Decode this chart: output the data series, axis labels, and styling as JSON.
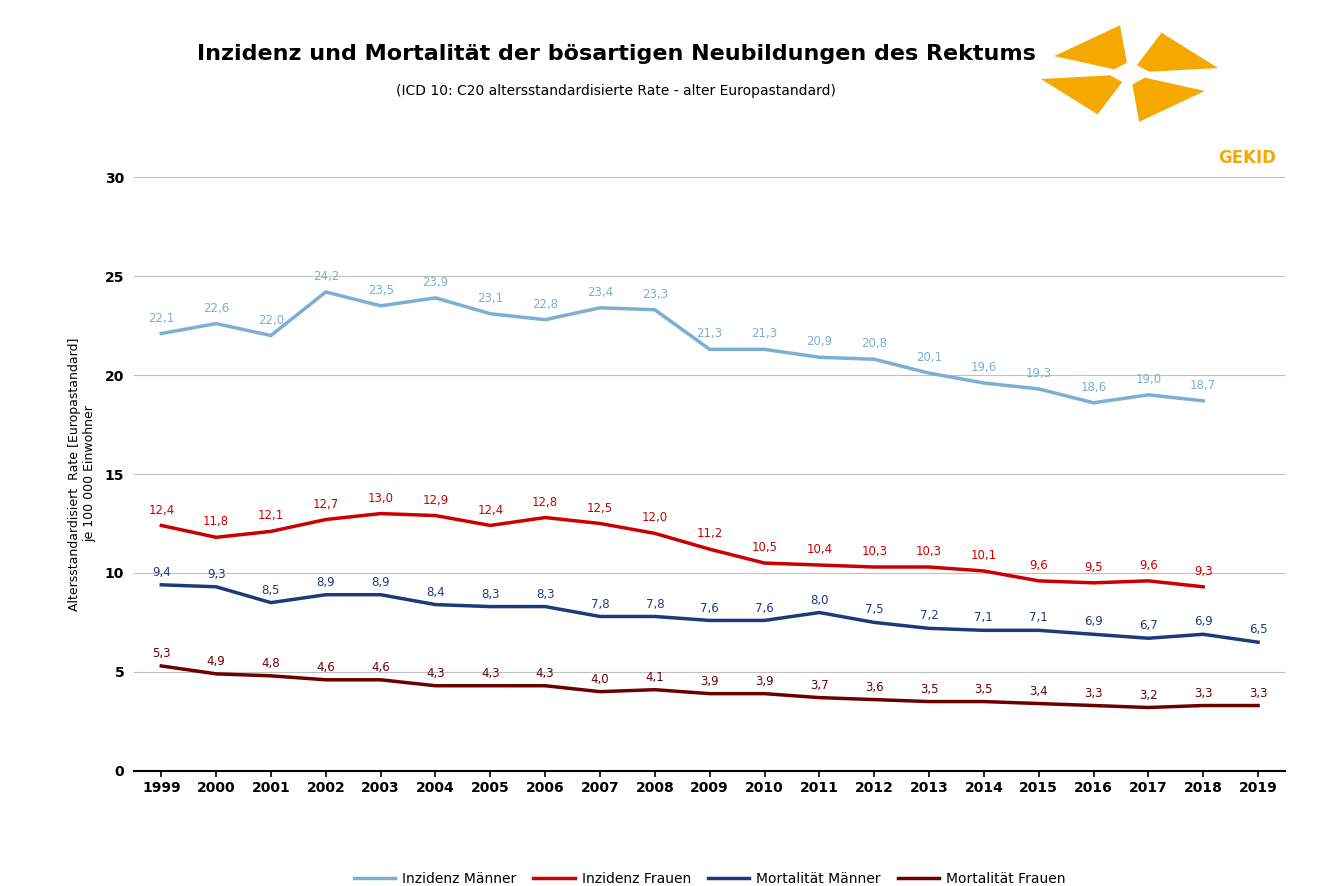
{
  "title": "Inzidenz und Mortalität der bösartigen Neubildungen des Rektums",
  "subtitle": "(ICD 10: C20 altersstandardisierte Rate - alter Europastandard)",
  "ylabel": "Altersstandardisiert  Rate [Europastandard]\nje 100 000 Einwohner",
  "years": [
    1999,
    2000,
    2001,
    2002,
    2003,
    2004,
    2005,
    2006,
    2007,
    2008,
    2009,
    2010,
    2011,
    2012,
    2013,
    2014,
    2015,
    2016,
    2017,
    2018,
    2019
  ],
  "inzidenz_maenner": [
    22.1,
    22.6,
    22.0,
    24.2,
    23.5,
    23.9,
    23.1,
    22.8,
    23.4,
    23.3,
    21.3,
    21.3,
    20.9,
    20.8,
    20.1,
    19.6,
    19.3,
    18.6,
    19.0,
    18.7,
    null
  ],
  "inzidenz_frauen": [
    12.4,
    11.8,
    12.1,
    12.7,
    13.0,
    12.9,
    12.4,
    12.8,
    12.5,
    12.0,
    11.2,
    10.5,
    10.4,
    10.3,
    10.3,
    10.1,
    9.6,
    9.5,
    9.6,
    9.3,
    null
  ],
  "mortalitaet_maenner": [
    9.4,
    9.3,
    8.5,
    8.9,
    8.9,
    8.4,
    8.3,
    8.3,
    7.8,
    7.8,
    7.6,
    7.6,
    8.0,
    7.5,
    7.2,
    7.1,
    7.1,
    6.9,
    6.7,
    6.9,
    6.5
  ],
  "mortalitaet_frauen": [
    5.3,
    4.9,
    4.8,
    4.6,
    4.6,
    4.3,
    4.3,
    4.3,
    4.0,
    4.1,
    3.9,
    3.9,
    3.7,
    3.6,
    3.5,
    3.5,
    3.4,
    3.3,
    3.2,
    3.3,
    3.3
  ],
  "color_inzidenz_maenner": "#7BAFD4",
  "color_inzidenz_frauen": "#CC0000",
  "color_mortalitaet_maenner": "#1F3A7A",
  "color_mortalitaet_frauen": "#6B0000",
  "ylim": [
    0,
    30
  ],
  "yticks": [
    0,
    5,
    10,
    15,
    20,
    25,
    30
  ],
  "title_fontsize": 16,
  "subtitle_fontsize": 10,
  "label_fontsize": 8.5,
  "axis_label_fontsize": 9,
  "legend_fontsize": 10,
  "logo_orange": "#F5A800"
}
